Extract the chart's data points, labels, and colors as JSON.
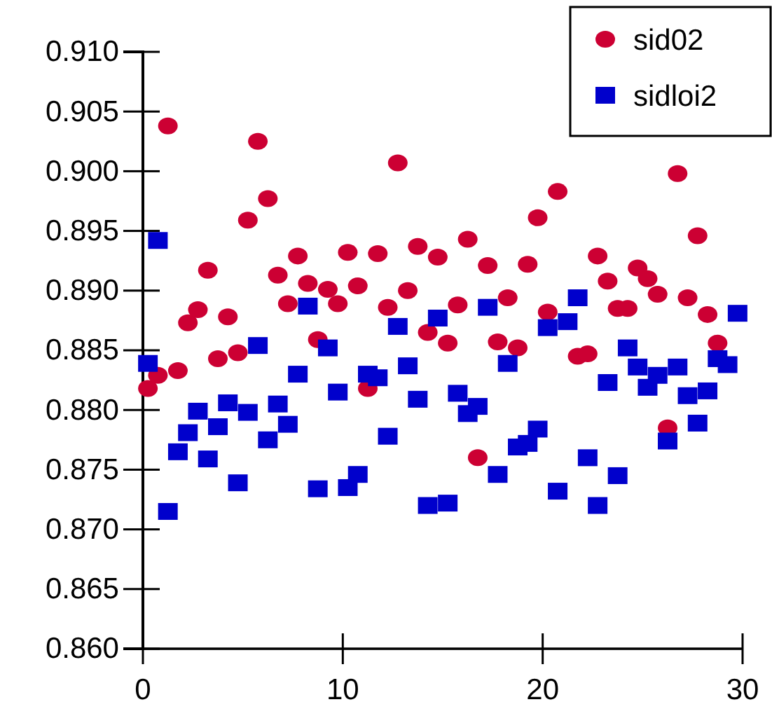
{
  "chart_data": {
    "type": "scatter",
    "x": [
      0.25,
      0.75,
      1.25,
      1.75,
      2.25,
      2.75,
      3.25,
      3.75,
      4.25,
      4.75,
      5.25,
      5.75,
      6.25,
      6.75,
      7.25,
      7.75,
      8.25,
      8.75,
      9.25,
      9.75,
      10.25,
      10.75,
      11.25,
      11.75,
      12.25,
      12.75,
      13.25,
      13.75,
      14.25,
      14.75,
      15.25,
      15.75,
      16.25,
      16.75,
      17.25,
      17.75,
      18.25,
      18.75,
      19.25,
      19.75,
      20.25,
      20.75,
      21.25,
      21.75,
      22.25,
      22.75,
      23.25,
      23.75,
      24.25,
      24.75,
      25.25,
      25.75,
      26.25,
      26.75,
      27.25,
      27.75,
      28.25,
      28.75,
      29.25,
      29.75
    ],
    "series": [
      {
        "name": "sid02",
        "color": "#cc0033",
        "marker": "circle",
        "values": [
          0.8818,
          0.8829,
          0.9038,
          0.8833,
          0.8873,
          0.8884,
          0.8917,
          0.8843,
          0.8878,
          0.8848,
          0.8959,
          0.9025,
          0.8977,
          0.8913,
          0.8889,
          0.8929,
          0.8906,
          0.8859,
          0.8901,
          0.8889,
          0.8932,
          0.8904,
          0.8818,
          0.8931,
          0.8886,
          0.9007,
          0.89,
          0.8937,
          0.8865,
          0.8928,
          0.8856,
          0.8888,
          0.8943,
          0.876,
          0.8921,
          0.8857,
          0.8894,
          0.8852,
          0.8922,
          0.8961,
          0.8882,
          0.8983,
          null,
          0.8845,
          0.8847,
          0.8929,
          0.8908,
          0.8885,
          0.8885,
          0.8919,
          0.891,
          0.8897,
          0.8785,
          0.8998,
          0.8894,
          0.8946,
          0.888,
          0.8856,
          null,
          null
        ]
      },
      {
        "name": "sidloi2",
        "color": "#0000cc",
        "marker": "square",
        "values": [
          0.8839,
          0.8942,
          0.8715,
          0.8765,
          0.8781,
          0.8799,
          0.8759,
          0.8786,
          0.8806,
          0.8739,
          0.8798,
          0.8854,
          0.8775,
          0.8805,
          0.8788,
          0.883,
          0.8887,
          0.8734,
          0.8852,
          0.8815,
          0.8735,
          0.8746,
          0.883,
          0.8827,
          0.8778,
          0.887,
          0.8837,
          0.8809,
          0.872,
          0.8877,
          0.8722,
          0.8814,
          0.8797,
          0.8803,
          0.8886,
          0.8746,
          0.8839,
          0.8769,
          0.8772,
          0.8784,
          0.8869,
          0.8732,
          0.8874,
          0.8894,
          0.876,
          0.872,
          0.8823,
          0.8745,
          0.8852,
          0.8836,
          0.8819,
          0.8829,
          0.8774,
          0.8836,
          0.8812,
          0.8789,
          0.8816,
          0.8843,
          0.8838,
          0.8881
        ]
      }
    ],
    "xlim": [
      0,
      30
    ],
    "xticks": [
      0,
      10,
      20,
      30
    ],
    "ylim": [
      0.86,
      0.91
    ],
    "yticks": [
      {
        "value": 0.86,
        "label": "0.860"
      },
      {
        "value": 0.865,
        "label": "0.865"
      },
      {
        "value": 0.87,
        "label": "0.870"
      },
      {
        "value": 0.875,
        "label": "0.875"
      },
      {
        "value": 0.88,
        "label": "0.880"
      },
      {
        "value": 0.885,
        "label": "0.885"
      },
      {
        "value": 0.89,
        "label": "0.890"
      },
      {
        "value": 0.895,
        "label": "0.895"
      },
      {
        "value": 0.9,
        "label": "0.900"
      },
      {
        "value": 0.905,
        "label": "0.905"
      },
      {
        "value": 0.91,
        "label": "0.910"
      }
    ],
    "grid": false,
    "legend": "top right"
  }
}
